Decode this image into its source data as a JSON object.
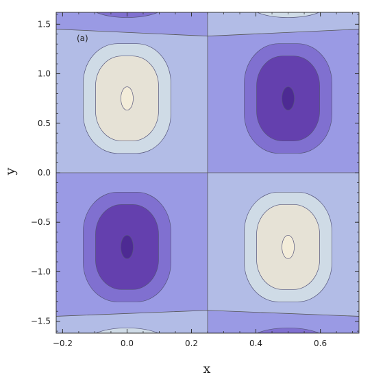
{
  "chart_data": {
    "type": "contour",
    "panel_label": "(a)",
    "xlabel": "x",
    "ylabel": "y",
    "xlim": [
      -0.22,
      0.72
    ],
    "ylim": [
      -1.62,
      1.62
    ],
    "x_ticks": [
      -0.2,
      0.0,
      0.2,
      0.4,
      0.6
    ],
    "x_tick_labels": [
      "−0.2",
      "0.0",
      "0.2",
      "0.4",
      "0.6"
    ],
    "y_ticks": [
      -1.5,
      -1.0,
      -0.5,
      0.0,
      0.5,
      1.0,
      1.5
    ],
    "y_tick_labels": [
      "−1.5",
      "−1.0",
      "−0.5",
      "0.0",
      "0.5",
      "1.0",
      "1.5"
    ],
    "extrema": [
      {
        "x": 0.0,
        "y": 0.75,
        "kind": "maximum"
      },
      {
        "x": 0.5,
        "y": 0.75,
        "kind": "minimum"
      },
      {
        "x": 0.0,
        "y": -0.75,
        "kind": "minimum"
      },
      {
        "x": 0.5,
        "y": -0.75,
        "kind": "maximum"
      }
    ],
    "level_colors": [
      "#4d2a93",
      "#6440ae",
      "#8070d0",
      "#9a9ae4",
      "#b2bce6",
      "#cfdbe6",
      "#ece7d6"
    ],
    "grid": false
  }
}
